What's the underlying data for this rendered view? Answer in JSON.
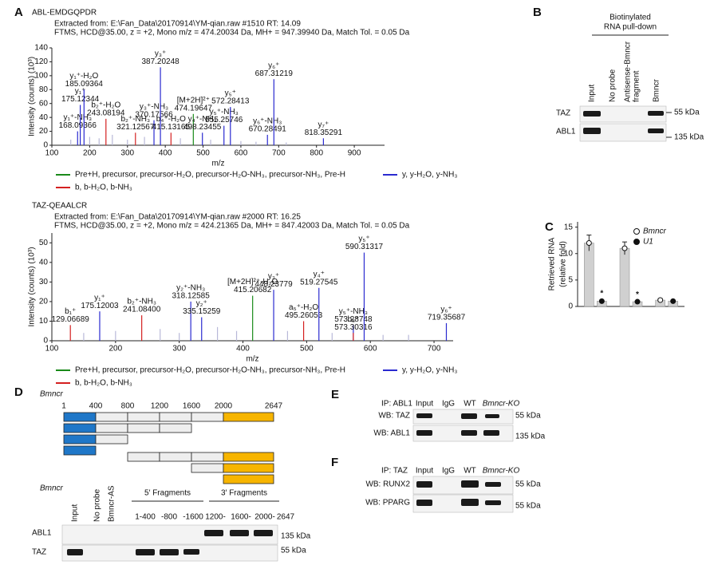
{
  "panel_letters": [
    "A",
    "B",
    "C",
    "D",
    "E",
    "F"
  ],
  "chart_data": [
    {
      "type": "spectrum",
      "title": "ABL-EMDGQPDR",
      "info": [
        "Extracted from: E:\\Fan_Data\\20170914\\YM-qian.raw #1510 RT: 14.09",
        "FTMS, HCD@35.00, z = +2, Mono m/z = 474.20034 Da, MH+ = 947.39940 Da, Match Tol. = 0.05 Da"
      ],
      "y_label": "Intensity (counts) (10³)",
      "x_label": "m/z",
      "xlim": [
        100,
        980
      ],
      "xticks": [
        100,
        200,
        300,
        400,
        500,
        600,
        700,
        800,
        900
      ],
      "ylim": [
        0,
        140
      ],
      "yticks": [
        0,
        20,
        40,
        60,
        80,
        100,
        120,
        140
      ],
      "x": [
        150,
        168.09366,
        175.12344,
        185.09364,
        200,
        225,
        243.08194,
        260,
        300,
        321.12567,
        345,
        370.17566,
        387.20248,
        415.13165,
        440,
        474.19647,
        498.23455,
        520,
        555.25746,
        572.28413,
        600,
        640,
        670.28491,
        687.31219,
        720,
        818.35291
      ],
      "values": [
        8,
        20,
        58,
        80,
        12,
        10,
        38,
        15,
        8,
        18,
        12,
        36,
        112,
        18,
        10,
        45,
        18,
        8,
        28,
        55,
        6,
        5,
        15,
        95,
        4,
        10
      ],
      "ions": [
        null,
        "y₁⁺-NH₃",
        "y₁⁺",
        "y₁⁺-H₂O",
        null,
        null,
        "b₂⁺-H₂O",
        null,
        null,
        "b₂⁺-NH₃",
        null,
        "y₃⁺-NH₃",
        "y₃⁺",
        "b₄⁺-H₂O",
        null,
        "[M+2H]²⁺",
        "y₄⁺-NH₃",
        null,
        "y₅⁺-NH₃",
        "y₅⁺",
        null,
        null,
        "y₆⁺-NH₃",
        "y₆⁺",
        null,
        "y₇⁺"
      ],
      "x_labels": [
        null,
        "168.09366",
        "175.12344",
        "185.09364",
        null,
        null,
        "243.08194",
        null,
        null,
        "321.12567",
        null,
        "370.17566",
        "387.20248",
        "415.13165",
        null,
        "474.19647",
        "498.23455",
        null,
        "555.25746",
        "572.28413",
        null,
        null,
        "670.28491",
        "687.31219",
        null,
        "818.35291"
      ],
      "colors": [
        "#b8b8d8",
        "#2a2ad0",
        "#2a2ad0",
        "#2a2ad0",
        "#b8b8d8",
        "#b8b8d8",
        "#d42020",
        "#b8b8d8",
        "#b8b8d8",
        "#d42020",
        "#b8b8d8",
        "#2a2ad0",
        "#2a2ad0",
        "#d42020",
        "#b8b8d8",
        "#1a8a1a",
        "#2a2ad0",
        "#b8b8d8",
        "#2a2ad0",
        "#2a2ad0",
        "#b8b8d8",
        "#b8b8d8",
        "#2a2ad0",
        "#2a2ad0",
        "#b8b8d8",
        "#2a2ad0"
      ],
      "legend": [
        {
          "name": "Pre+H, precursor, precursor-H₂O, precursor-H₂O-NH₃, precursor-NH₃, Pre-H",
          "color": "#1a8a1a"
        },
        {
          "name": "y, y-H₂O, y-NH₃",
          "color": "#2a2ad0"
        },
        {
          "name": "b, b-H₂O, b-NH₃",
          "color": "#d42020"
        }
      ]
    },
    {
      "type": "spectrum",
      "title": "TAZ-QEAALCR",
      "info": [
        "Extracted from: E:\\Fan_Data\\20170914\\YM-qian.raw #2000 RT: 16.25",
        "FTMS, HCD@35.00, z = +2, Mono m/z = 424.21365 Da, MH+ = 847.42003 Da, Match Tol. = 0.05 Da"
      ],
      "y_label": "Intensity (counts) (10³)",
      "x_label": "m/z",
      "xlim": [
        100,
        730
      ],
      "xticks": [
        100,
        200,
        300,
        400,
        500,
        600,
        700
      ],
      "ylim": [
        0,
        55
      ],
      "yticks": [
        0,
        10,
        20,
        30,
        40,
        50
      ],
      "x": [
        129.06689,
        150,
        175.12003,
        200,
        241.084,
        270,
        300,
        318.12585,
        335.15259,
        360,
        390,
        415.20682,
        448.23779,
        470,
        495.26053,
        519.27545,
        540,
        573.28748,
        573.30316,
        590.31317,
        620,
        660,
        719.35687
      ],
      "values": [
        8,
        4,
        15,
        5,
        13,
        6,
        4,
        20,
        12,
        7,
        5,
        23,
        26,
        5,
        10,
        27,
        4,
        8,
        4,
        45,
        3,
        3,
        9
      ],
      "ions": [
        "b₁⁺",
        null,
        "y₁⁺",
        null,
        "b₂⁺-NH₃",
        null,
        null,
        "y₂⁺-NH₃",
        "y₂⁺",
        null,
        null,
        "[M+2H]²⁺-H₂O",
        "y₃⁺",
        null,
        "a₅⁺-H₂O",
        "y₄⁺",
        null,
        "y₅⁺-NH₃",
        "b₅⁺",
        "y₅⁺",
        null,
        null,
        "y₆⁺"
      ],
      "x_labels": [
        "129.06689",
        null,
        "175.12003",
        null,
        "241.08400",
        null,
        null,
        "318.12585",
        "335.15259",
        null,
        null,
        "415.20682",
        "448.23779",
        null,
        "495.26053",
        "519.27545",
        null,
        "573.28748",
        "573.30316",
        "590.31317",
        null,
        null,
        "719.35687"
      ],
      "colors": [
        "#d42020",
        "#b8b8d8",
        "#2a2ad0",
        "#b8b8d8",
        "#d42020",
        "#b8b8d8",
        "#b8b8d8",
        "#2a2ad0",
        "#2a2ad0",
        "#b8b8d8",
        "#b8b8d8",
        "#1a8a1a",
        "#2a2ad0",
        "#b8b8d8",
        "#d42020",
        "#2a2ad0",
        "#b8b8d8",
        "#2a2ad0",
        "#d42020",
        "#2a2ad0",
        "#b8b8d8",
        "#b8b8d8",
        "#2a2ad0"
      ],
      "legend": [
        {
          "name": "Pre+H, precursor, precursor-H₂O, precursor-H₂O-NH₃, precursor-NH₃, Pre-H",
          "color": "#1a8a1a"
        },
        {
          "name": "y, y-H₂O, y-NH₃",
          "color": "#2a2ad0"
        },
        {
          "name": "b, b-H₂O, b-NH₃",
          "color": "#d42020"
        }
      ]
    },
    {
      "type": "bar",
      "y_label": [
        "Retrieved RNA",
        "(relative fold)"
      ],
      "categories": [
        null,
        null,
        null
      ],
      "ylim": [
        0,
        16
      ],
      "yticks": [
        0,
        5,
        10,
        15
      ],
      "series": [
        {
          "name": "Bmncr",
          "color": "#d0d0d0",
          "values": [
            12,
            11,
            1.2
          ],
          "errors": [
            1.5,
            1.2,
            0.3
          ]
        },
        {
          "name": "U1",
          "color": "#d0d0d0",
          "values": [
            1,
            0.9,
            1
          ],
          "errors": [
            0.2,
            0.1,
            0.1
          ]
        }
      ],
      "significance": [
        "*",
        "*",
        null
      ]
    }
  ],
  "panel_b": {
    "header": [
      "Biotinylated",
      "RNA pull-down"
    ],
    "lanes": [
      "Input",
      "No probe",
      "Antisense-Bmncr",
      "fragment",
      "Bmncr"
    ],
    "rows": [
      "TAZ",
      "ABL1"
    ],
    "markers": [
      "55 kDa",
      "135 kDa"
    ]
  },
  "panel_d": {
    "title": "Bmncr",
    "positions": [
      "1",
      "400",
      "800",
      "1200",
      "1600",
      "2000",
      "2647"
    ],
    "blot_title": "Bmncr",
    "lanes": [
      "Input",
      "No probe",
      "Bmncr-AS"
    ],
    "groups": [
      "5′ Fragments",
      "3′ Fragments"
    ],
    "fragments": [
      "1-400",
      "-800",
      "-1600",
      "1200-",
      "1600-",
      "2000-",
      "2647"
    ],
    "rows": [
      "ABL1",
      "TAZ"
    ],
    "markers": [
      "135 kDa",
      "55 kDa"
    ]
  },
  "panel_e": {
    "ip": "IP: ABL1",
    "lanes": [
      "Input",
      "IgG",
      "WT",
      "Bmncr-KO"
    ],
    "rows": [
      "WB: TAZ",
      "WB: ABL1"
    ],
    "markers": [
      "55 kDa",
      "135 kDa"
    ]
  },
  "panel_f": {
    "ip": "IP: TAZ",
    "lanes": [
      "Input",
      "IgG",
      "WT",
      "Bmncr-KO"
    ],
    "rows": [
      "WB: RUNX2",
      "WB: PPARG"
    ],
    "markers": [
      "55 kDa",
      "55 kDa"
    ]
  }
}
